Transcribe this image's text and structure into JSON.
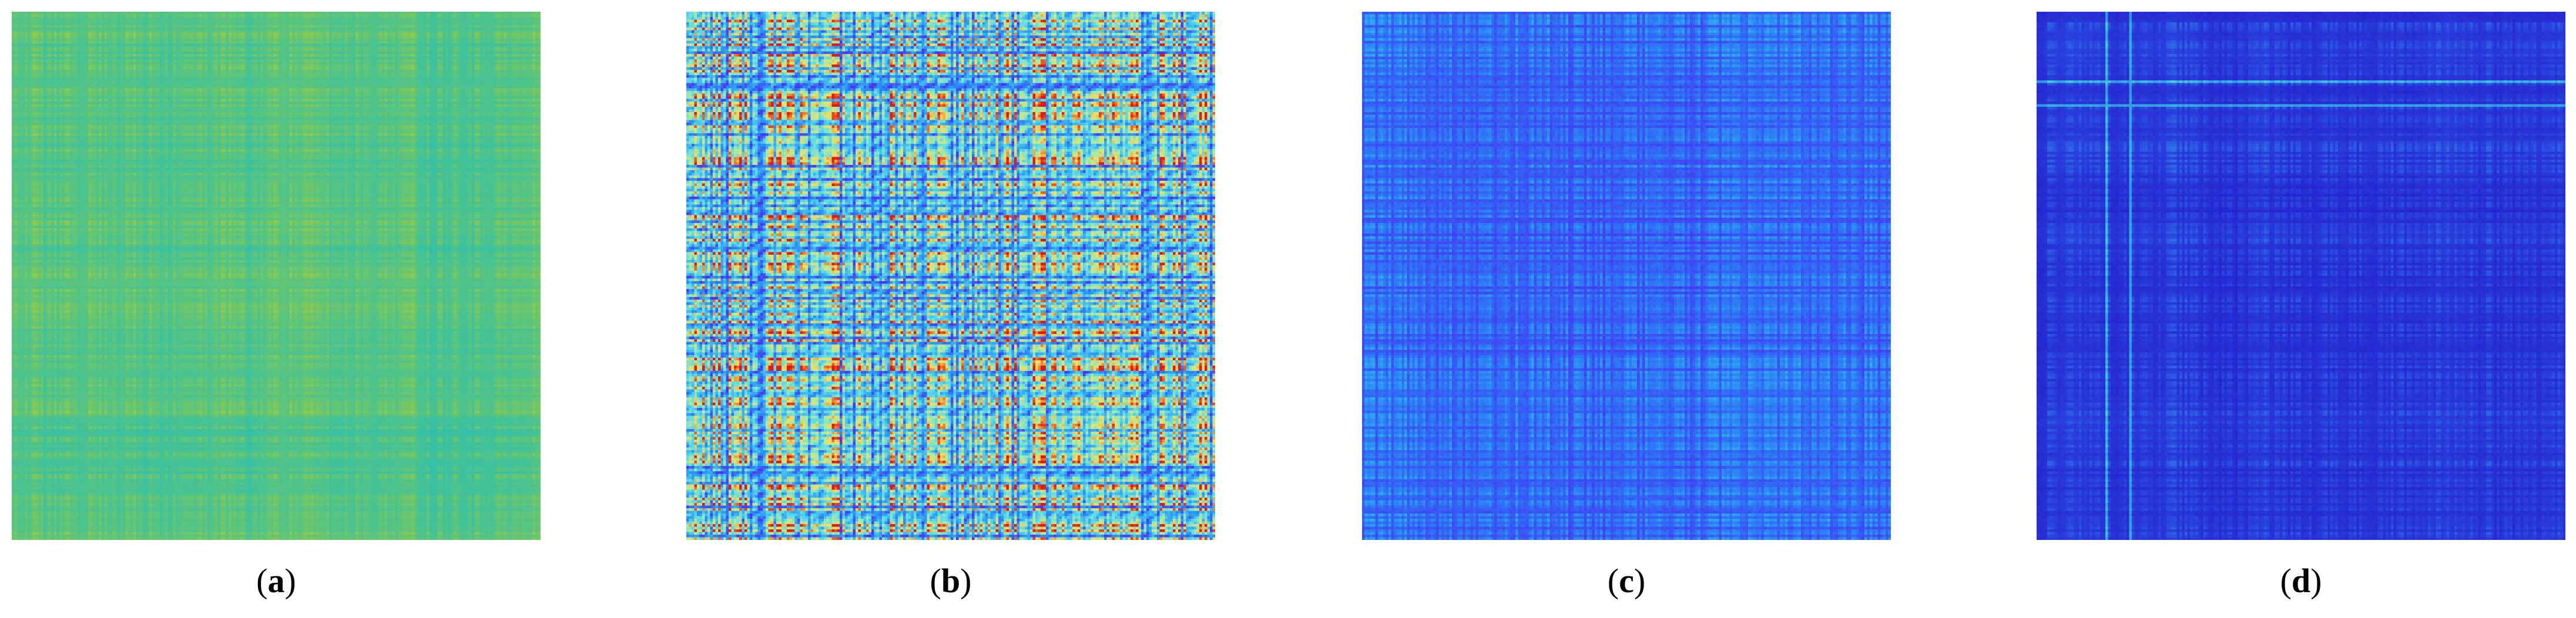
{
  "chart_data": [
    {
      "type": "heatmap",
      "caption": "a",
      "grid_size": 200,
      "colormap": "parula",
      "colors": [
        "#3b3ee8",
        "#1aa0e8",
        "#2dbfb0",
        "#7cc85a",
        "#e0d41e"
      ],
      "value_range": [
        0.35,
        0.95
      ],
      "seed": 11
    },
    {
      "type": "heatmap",
      "caption": "b",
      "grid_size": 200,
      "colormap": "jet",
      "colors": [
        "#5a10f0",
        "#2a8ff5",
        "#55d8f0",
        "#a8e8a8",
        "#f0e060",
        "#f06a20",
        "#e01818"
      ],
      "value_range": [
        0.05,
        1.0
      ],
      "seed": 23
    },
    {
      "type": "heatmap",
      "caption": "c",
      "grid_size": 200,
      "colormap": "blue",
      "colors": [
        "#4a2ef0",
        "#2f6ef5",
        "#2d9af2",
        "#30c8f4",
        "#5ae0f5"
      ],
      "value_range": [
        0.0,
        0.9
      ],
      "seed": 37
    },
    {
      "type": "heatmap",
      "caption": "d",
      "grid_size": 200,
      "colormap": "jet-dark",
      "colors": [
        "#2318c8",
        "#2a45e0",
        "#2f8ce8",
        "#38c8d8",
        "#c8e060",
        "#f0d020"
      ],
      "value_range": [
        0.0,
        0.75
      ],
      "seed": 53
    }
  ],
  "captions": {
    "a": {
      "open": "(",
      "label": "a",
      "close": ")"
    },
    "b": {
      "open": "(",
      "label": "b",
      "close": ")"
    },
    "c": {
      "open": "(",
      "label": "c",
      "close": ")"
    },
    "d": {
      "open": "(",
      "label": "d",
      "close": ")"
    }
  }
}
